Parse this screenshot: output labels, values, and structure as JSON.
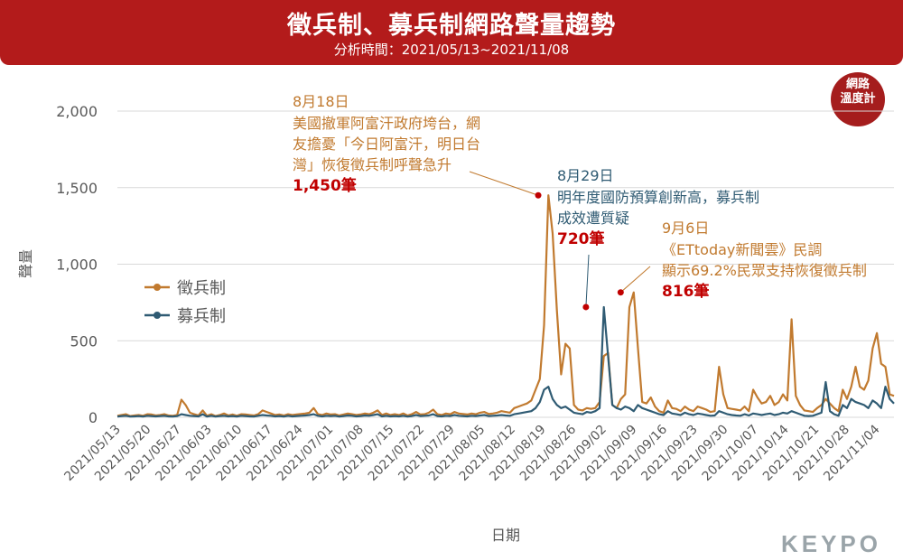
{
  "header": {
    "title": "徵兵制、募兵制網路聲量趨勢",
    "subtitle": "分析時間：2021/05/13~2021/11/08"
  },
  "badge": {
    "line1": "網路",
    "line2": "溫度計"
  },
  "logo": "KEYPO",
  "colors": {
    "banner": "#b31b1b",
    "conscription": "#c17a2f",
    "volunteer": "#2f5b73",
    "highlight": "#c00000"
  },
  "chart_data": {
    "type": "line",
    "xlabel": "日期",
    "ylabel": "聲量",
    "ylim": [
      0,
      2000
    ],
    "yticks": [
      "0",
      "500",
      "1,000",
      "1,500",
      "2,000"
    ],
    "yticks_values": [
      0,
      500,
      1000,
      1500,
      2000
    ],
    "xticks": [
      "2021/05/13",
      "2021/05/20",
      "2021/05/27",
      "2021/06/03",
      "2021/06/10",
      "2021/06/17",
      "2021/06/24",
      "2021/07/01",
      "2021/07/08",
      "2021/07/15",
      "2021/07/22",
      "2021/07/29",
      "2021/08/05",
      "2021/08/12",
      "2021/08/19",
      "2021/08/26",
      "2021/09/02",
      "2021/09/09",
      "2021/09/16",
      "2021/09/23",
      "2021/09/30",
      "2021/10/07",
      "2021/10/14",
      "2021/10/21",
      "2021/10/28",
      "2021/11/04"
    ],
    "x_start": "2021/05/13",
    "x_end": "2021/11/08",
    "grid": "horizontal",
    "legend_position": "left-middle",
    "series": [
      {
        "name": "徵兵制",
        "color": "#c17a2f",
        "values": [
          10,
          15,
          20,
          8,
          12,
          15,
          10,
          20,
          18,
          12,
          15,
          20,
          12,
          10,
          15,
          115,
          80,
          30,
          20,
          12,
          45,
          10,
          20,
          8,
          15,
          25,
          12,
          18,
          10,
          20,
          18,
          15,
          12,
          20,
          45,
          35,
          25,
          15,
          18,
          12,
          20,
          15,
          18,
          22,
          25,
          30,
          60,
          20,
          15,
          25,
          18,
          20,
          12,
          18,
          25,
          20,
          15,
          18,
          25,
          20,
          30,
          45,
          15,
          25,
          15,
          20,
          15,
          25,
          12,
          20,
          35,
          18,
          20,
          30,
          50,
          20,
          15,
          25,
          20,
          35,
          25,
          22,
          18,
          25,
          20,
          30,
          35,
          22,
          25,
          30,
          40,
          35,
          30,
          60,
          70,
          80,
          90,
          110,
          180,
          250,
          600,
          1450,
          1200,
          700,
          280,
          480,
          450,
          80,
          50,
          45,
          60,
          55,
          60,
          100,
          400,
          420,
          80,
          60,
          120,
          150,
          720,
          816,
          450,
          100,
          90,
          130,
          70,
          40,
          30,
          110,
          60,
          55,
          40,
          70,
          50,
          40,
          70,
          60,
          50,
          35,
          40,
          330,
          150,
          60,
          55,
          50,
          45,
          70,
          40,
          180,
          130,
          90,
          100,
          140,
          80,
          100,
          150,
          110,
          640,
          140,
          80,
          45,
          40,
          35,
          60,
          80,
          120,
          90,
          60,
          40,
          180,
          120,
          200,
          330,
          200,
          180,
          240,
          450,
          550,
          350,
          330,
          150,
          140
        ],
        "note": "approximate daily values read from chart"
      },
      {
        "name": "募兵制",
        "color": "#2f5b73",
        "values": [
          5,
          8,
          10,
          5,
          6,
          8,
          5,
          10,
          8,
          6,
          8,
          10,
          6,
          5,
          8,
          20,
          15,
          10,
          8,
          6,
          20,
          5,
          10,
          5,
          8,
          10,
          6,
          8,
          5,
          10,
          8,
          6,
          5,
          10,
          15,
          12,
          10,
          6,
          8,
          5,
          10,
          6,
          8,
          10,
          12,
          15,
          20,
          10,
          6,
          10,
          8,
          10,
          5,
          8,
          12,
          10,
          6,
          8,
          12,
          10,
          15,
          20,
          6,
          10,
          6,
          8,
          6,
          10,
          5,
          8,
          15,
          8,
          10,
          12,
          20,
          8,
          6,
          10,
          8,
          15,
          10,
          8,
          6,
          10,
          8,
          12,
          15,
          8,
          10,
          12,
          15,
          12,
          10,
          20,
          25,
          30,
          35,
          40,
          60,
          100,
          180,
          200,
          120,
          80,
          60,
          70,
          50,
          30,
          25,
          20,
          35,
          30,
          40,
          60,
          720,
          400,
          80,
          60,
          50,
          70,
          60,
          40,
          80,
          60,
          50,
          40,
          30,
          20,
          15,
          40,
          25,
          20,
          15,
          30,
          20,
          15,
          25,
          20,
          15,
          10,
          12,
          40,
          30,
          20,
          15,
          12,
          10,
          20,
          12,
          25,
          20,
          15,
          20,
          25,
          15,
          20,
          30,
          25,
          40,
          30,
          20,
          10,
          8,
          10,
          20,
          30,
          230,
          40,
          20,
          10,
          80,
          60,
          120,
          100,
          90,
          80,
          60,
          110,
          90,
          60,
          200,
          120,
          90
        ]
      }
    ],
    "annotations": [
      {
        "date": "2021/08/18",
        "series": "徵兵制",
        "value": 1450,
        "date_label": "8月18日",
        "text": "美國撤軍阿富汗政府垮台，網友擔憂「今日阿富汗，明日台灣」恢復徵兵制呼聲急升",
        "value_label": "1,450筆"
      },
      {
        "date": "2021/08/29",
        "series": "募兵制",
        "value": 720,
        "date_label": "8月29日",
        "text": "明年度國防預算創新高，募兵制成效遭質疑",
        "value_label": "720筆"
      },
      {
        "date": "2021/09/06",
        "series": "徵兵制",
        "value": 816,
        "date_label": "9月6日",
        "text": "《ETtoday新聞雲》民調顯示69.2%民眾支持恢復徵兵制",
        "value_label": "816筆"
      }
    ]
  }
}
